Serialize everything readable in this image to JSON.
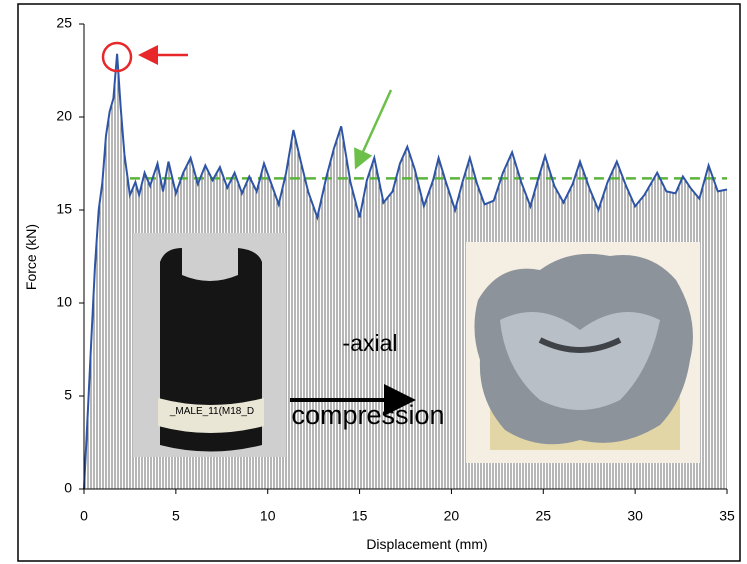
{
  "chart_data": {
    "type": "line",
    "x_label": "Displacement (mm)",
    "y_label": "Force (kN)",
    "x": [
      0,
      0.2,
      0.4,
      0.6,
      0.8,
      1.0,
      1.2,
      1.4,
      1.6,
      1.8,
      2.0,
      2.2,
      2.5,
      2.8,
      3.0,
      3.3,
      3.6,
      4.0,
      4.3,
      4.6,
      5.0,
      5.4,
      5.8,
      6.2,
      6.6,
      7.0,
      7.4,
      7.8,
      8.2,
      8.6,
      9.0,
      9.4,
      9.8,
      10.2,
      10.6,
      11.0,
      11.4,
      11.8,
      12.2,
      12.7,
      13.2,
      13.6,
      14.0,
      14.5,
      15.0,
      15.4,
      15.8,
      16.3,
      16.8,
      17.2,
      17.6,
      18.0,
      18.5,
      19.0,
      19.3,
      19.7,
      20.2,
      20.6,
      21.0,
      21.4,
      21.8,
      22.3,
      22.8,
      23.3,
      23.8,
      24.3,
      24.7,
      25.1,
      25.6,
      26.1,
      26.6,
      27.0,
      27.5,
      28.0,
      28.5,
      29.0,
      29.5,
      30.0,
      30.5,
      31.2,
      31.7,
      32.2,
      32.6,
      33.0,
      33.5,
      34.0,
      34.5,
      35.0
    ],
    "values": [
      0,
      4,
      8,
      12,
      15,
      16.5,
      19,
      20.3,
      21,
      23.4,
      20.5,
      18,
      15.8,
      16.5,
      15.8,
      17,
      16.3,
      17.5,
      16,
      17.6,
      15.9,
      17,
      17.8,
      16.4,
      17.4,
      16.6,
      17.3,
      16.2,
      17,
      15.9,
      16.8,
      16,
      17.5,
      16.4,
      15.3,
      17,
      19.3,
      17.6,
      16,
      14.6,
      16.8,
      18.3,
      19.5,
      16.5,
      14.6,
      16.6,
      17.8,
      15.4,
      16,
      17.5,
      18.4,
      17.2,
      15.2,
      16.6,
      17.8,
      16.5,
      15,
      16.5,
      17.8,
      16.4,
      15.3,
      15.5,
      17,
      18.1,
      16.5,
      15.2,
      16.6,
      17.9,
      16.3,
      15.4,
      16.4,
      17.6,
      16.2,
      15,
      16.5,
      17.6,
      16.3,
      15.2,
      15.8,
      17,
      16,
      15.9,
      16.8,
      16.2,
      15.6,
      17.4,
      16,
      16.1
    ],
    "color": "#2e55a5",
    "fill_hatch_color": "#6e6e6e",
    "xlim": [
      0,
      35
    ],
    "ylim": [
      0,
      25
    ],
    "xticks": [
      0,
      5,
      10,
      15,
      20,
      25,
      30,
      35
    ],
    "yticks": [
      0,
      5,
      10,
      15,
      20,
      25
    ],
    "reference_line": {
      "y": 16.7,
      "x": [
        2.5,
        35
      ],
      "color": "#5cb53b",
      "dashed": true
    },
    "annotations": [
      "-axial",
      "compression",
      "_MALE_11(M18_D"
    ]
  }
}
